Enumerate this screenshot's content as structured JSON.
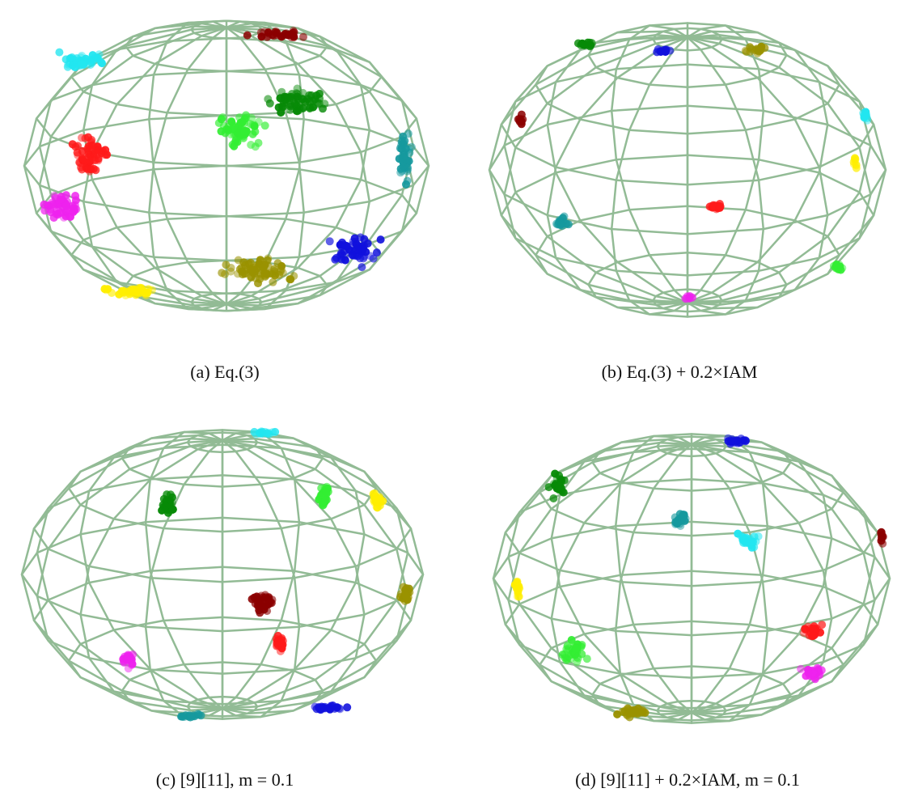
{
  "figure": {
    "captions": [
      "(a) Eq.(3)",
      "(b) Eq.(3) + 0.2×IAM",
      "(c) [9][11], m = 0.1",
      "(d) [9][11] + 0.2×IAM, m = 0.1"
    ]
  }
}
